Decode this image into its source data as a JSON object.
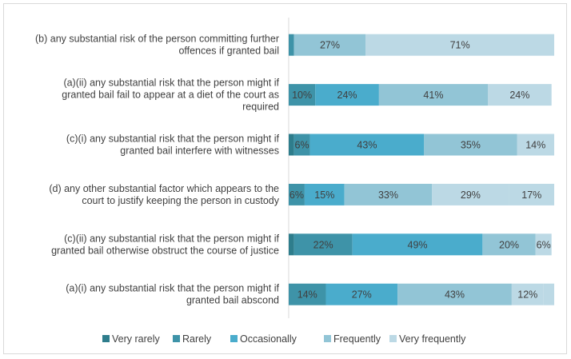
{
  "chart_data": {
    "type": "bar",
    "orientation": "horizontal",
    "stacked": "percent",
    "xlim": [
      0,
      100
    ],
    "grid": false,
    "legend_position": "bottom",
    "categories": [
      [
        "(b) any substantial risk of the person committing further",
        "offences if granted bail"
      ],
      [
        "(a)(ii) any substantial risk that the person might if",
        "granted bail fail to appear at a diet of the court as",
        "required"
      ],
      [
        "(c)(i) any substantial risk that the person might if",
        "granted bail interfere with witnesses"
      ],
      [
        "(d) any other substantial factor which appears to the",
        "court to justify keeping the person in custody"
      ],
      [
        "(c)(ii) any substantial risk that the person might if",
        "granted bail otherwise obstruct the course of justice"
      ],
      [
        "(a)(i) any substantial risk that the person might if",
        "granted bail abscond"
      ]
    ],
    "series": [
      {
        "name": "Very rarely",
        "color": "#2e7d8c",
        "values": [
          0,
          0,
          2,
          0,
          2,
          0
        ],
        "labels": [
          "",
          "",
          "",
          "",
          "",
          ""
        ]
      },
      {
        "name": "Rarely",
        "color": "#3e93a8",
        "values": [
          2,
          10,
          6,
          6,
          22,
          14
        ],
        "labels": [
          "",
          "10%",
          "6%",
          "6%",
          "22%",
          "14%"
        ]
      },
      {
        "name": "Occasionally",
        "color": "#4aaccc",
        "values": [
          0,
          24,
          43,
          15,
          49,
          27
        ],
        "labels": [
          "",
          "24%",
          "43%",
          "15%",
          "49%",
          "27%"
        ]
      },
      {
        "name": "Frequently",
        "color": "#92c5d6",
        "values": [
          27,
          41,
          35,
          33,
          20,
          43
        ],
        "labels": [
          "27%",
          "41%",
          "35%",
          "33%",
          "20%",
          "43%"
        ]
      },
      {
        "name": "Very frequently",
        "color": "#bcd9e5",
        "values": [
          71,
          24,
          14,
          29,
          6,
          12
        ],
        "labels": [
          "71%",
          "24%",
          "14%",
          "29%",
          "6%",
          "12%"
        ]
      }
    ],
    "extra_segments": [
      {
        "category_index": 3,
        "value": 17,
        "label": "17%",
        "color": "#bcd9e5"
      },
      {
        "category_index": 5,
        "value": 4,
        "label": "",
        "color": "#bcd9e5"
      }
    ]
  }
}
